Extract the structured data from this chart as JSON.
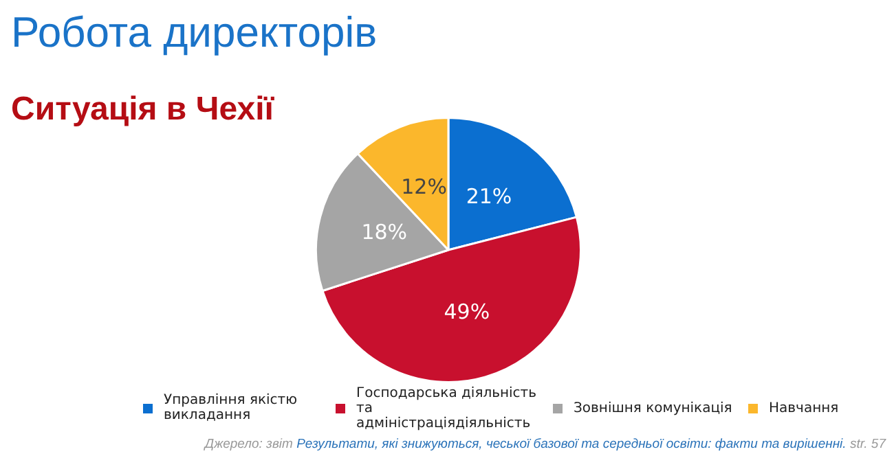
{
  "chart_data": {
    "type": "pie",
    "title": "Робота директорів",
    "subtitle": "Ситуація в Чехії",
    "categories": [
      "Управління якістю викладання",
      "Господарська діяльність та адміністраціядіяльність",
      "Зовнішня комунікація",
      "Навчання"
    ],
    "values": [
      21,
      49,
      18,
      12
    ],
    "colors": [
      "#0b6fd0",
      "#c8102e",
      "#a5a5a5",
      "#fbb72c"
    ],
    "value_labels": [
      "21%",
      "49%",
      "18%",
      "12%"
    ],
    "legend": "bottom",
    "annotations": [
      "Джерело: звіт",
      "Результати, які знижуються, чеської базової та середньої освіти: факти та вирішенні.",
      "str. 57"
    ]
  }
}
